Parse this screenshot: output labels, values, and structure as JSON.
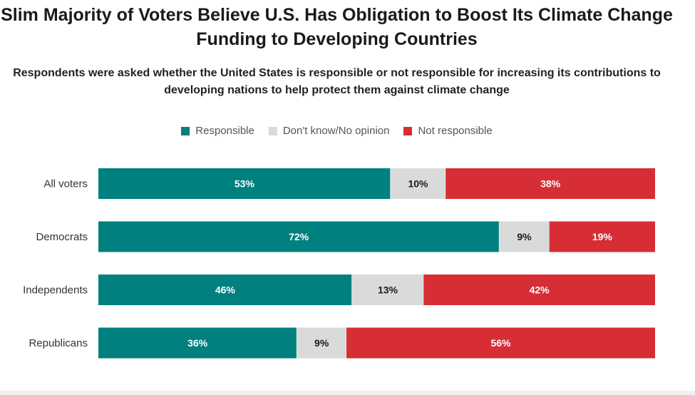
{
  "chart_data": {
    "type": "bar",
    "orientation": "horizontal",
    "stacked": true,
    "title": "Slim Majority of Voters Believe U.S. Has Obligation to Boost Its Climate Change Funding to Developing Countries",
    "subtitle": "Respondents were asked whether the United States is responsible or not responsible for increasing its contributions to developing nations to help protect them against climate change",
    "categories": [
      "All voters",
      "Democrats",
      "Independents",
      "Republicans"
    ],
    "series": [
      {
        "name": "Responsible",
        "values": [
          53,
          72,
          46,
          36
        ],
        "color": "#00807F",
        "label_color": "#ffffff"
      },
      {
        "name": "Don't know/No opinion",
        "values": [
          10,
          9,
          13,
          9
        ],
        "color": "#D9DADA",
        "label_color": "#1a1a1a"
      },
      {
        "name": "Not responsible",
        "values": [
          38,
          19,
          42,
          56
        ],
        "color": "#D72E36",
        "label_color": "#ffffff"
      }
    ],
    "value_suffix": "%",
    "legend_position": "top-center",
    "xlim": [
      0,
      100
    ]
  }
}
